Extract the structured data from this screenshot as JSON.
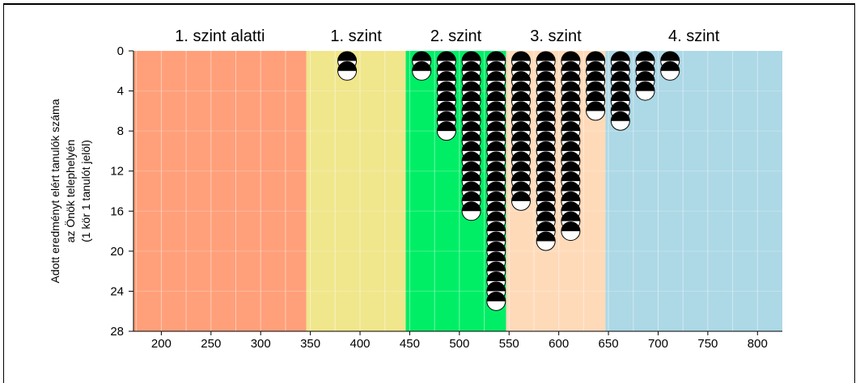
{
  "chart_data": {
    "type": "scatter",
    "title": "",
    "xlabel": "",
    "ylabel_lines": [
      "Adott eredményt elért tanulók száma",
      "az Önök telephelyén",
      "(1 kör 1 tanulót jelöl)"
    ],
    "xlim": [
      172,
      825
    ],
    "ylim": [
      0,
      28
    ],
    "y_inverted": true,
    "x_ticks": [
      200,
      250,
      300,
      350,
      400,
      450,
      500,
      550,
      600,
      650,
      700,
      750,
      800
    ],
    "y_ticks": [
      0,
      4,
      8,
      12,
      16,
      20,
      24,
      28
    ],
    "grid": true,
    "levels": [
      {
        "name": "1. szint alatti",
        "x_from": 172,
        "x_to": 346,
        "color": "#ffa07a"
      },
      {
        "name": "1. szint",
        "x_from": 346,
        "x_to": 446,
        "color": "#f0e68c"
      },
      {
        "name": "2. szint",
        "x_from": 446,
        "x_to": 547,
        "color": "#00ee66"
      },
      {
        "name": "3. szint",
        "x_from": 547,
        "x_to": 647,
        "color": "#ffdab9"
      },
      {
        "name": "4. szint",
        "x_from": 647,
        "x_to": 825,
        "color": "#add8e6"
      }
    ],
    "columns": [
      {
        "x": 387,
        "count": 2
      },
      {
        "x": 462,
        "count": 2
      },
      {
        "x": 487,
        "count": 8
      },
      {
        "x": 512,
        "count": 16
      },
      {
        "x": 537,
        "count": 25
      },
      {
        "x": 562,
        "count": 15
      },
      {
        "x": 587,
        "count": 19
      },
      {
        "x": 612,
        "count": 18
      },
      {
        "x": 637,
        "count": 6
      },
      {
        "x": 662,
        "count": 7
      },
      {
        "x": 687,
        "count": 4
      },
      {
        "x": 712,
        "count": 2
      }
    ]
  }
}
